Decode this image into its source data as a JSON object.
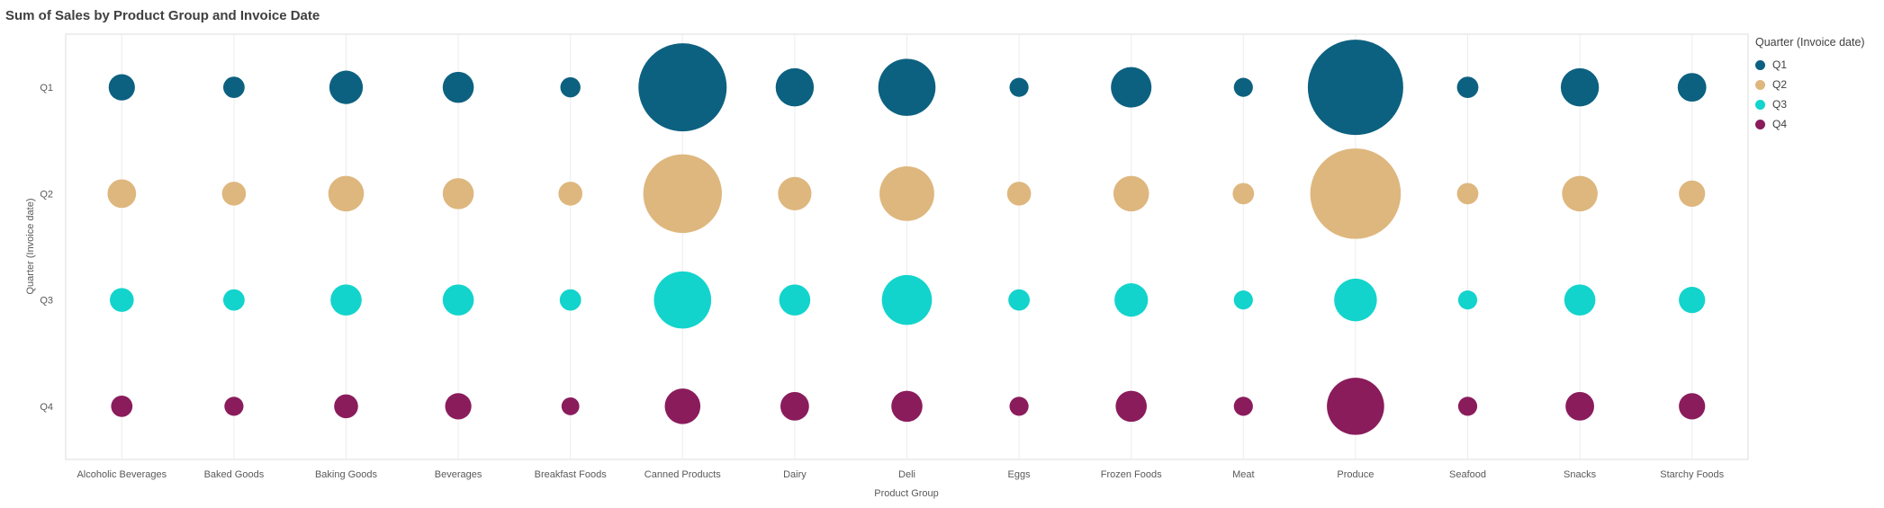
{
  "chart_data": {
    "type": "scatter",
    "subtype": "bubble",
    "title": "Sum of Sales by Product Group and Invoice Date",
    "xlabel": "Product Group",
    "ylabel": "Quarter (Invoice date)",
    "grid": true,
    "values_unit": "relative sum of sales (max bubble = 100)",
    "categories": [
      "Alcoholic Beverages",
      "Baked Goods",
      "Baking Goods",
      "Beverages",
      "Breakfast Foods",
      "Canned Products",
      "Dairy",
      "Deli",
      "Eggs",
      "Frozen Foods",
      "Meat",
      "Produce",
      "Seafood",
      "Snacks",
      "Starchy Foods"
    ],
    "y_categories": [
      "Q1",
      "Q2",
      "Q3",
      "Q4"
    ],
    "series": [
      {
        "name": "Q1",
        "color": "#0d6180",
        "values": [
          7.6,
          5,
          12.3,
          10.6,
          4.5,
          85.6,
          16,
          36,
          4,
          18,
          4,
          100,
          5,
          16,
          9
        ]
      },
      {
        "name": "Q2",
        "color": "#deb77e",
        "values": [
          9,
          6.3,
          14,
          10.6,
          6.3,
          68,
          12.3,
          33,
          6.3,
          14,
          5,
          90,
          5,
          14,
          7.6
        ]
      },
      {
        "name": "Q3",
        "color": "#12d4cc",
        "values": [
          6.3,
          5,
          10.6,
          10.6,
          5,
          36,
          10.6,
          27.5,
          5,
          12.3,
          4,
          20,
          4,
          10.6,
          7.6
        ]
      },
      {
        "name": "Q4",
        "color": "#8a1c5c",
        "values": [
          5,
          4,
          6.3,
          7.6,
          3.5,
          14,
          9,
          10.6,
          4,
          10.6,
          4,
          36,
          4,
          9,
          7.6
        ]
      }
    ],
    "legend": {
      "title": "Quarter (Invoice date)",
      "position": "right",
      "entries": [
        {
          "label": "Q1",
          "color": "#0d6180"
        },
        {
          "label": "Q2",
          "color": "#deb77e"
        },
        {
          "label": "Q3",
          "color": "#12d4cc"
        },
        {
          "label": "Q4",
          "color": "#8a1c5c"
        }
      ]
    },
    "size_scale": {
      "max_value": 100,
      "max_radius_px": 53
    }
  }
}
